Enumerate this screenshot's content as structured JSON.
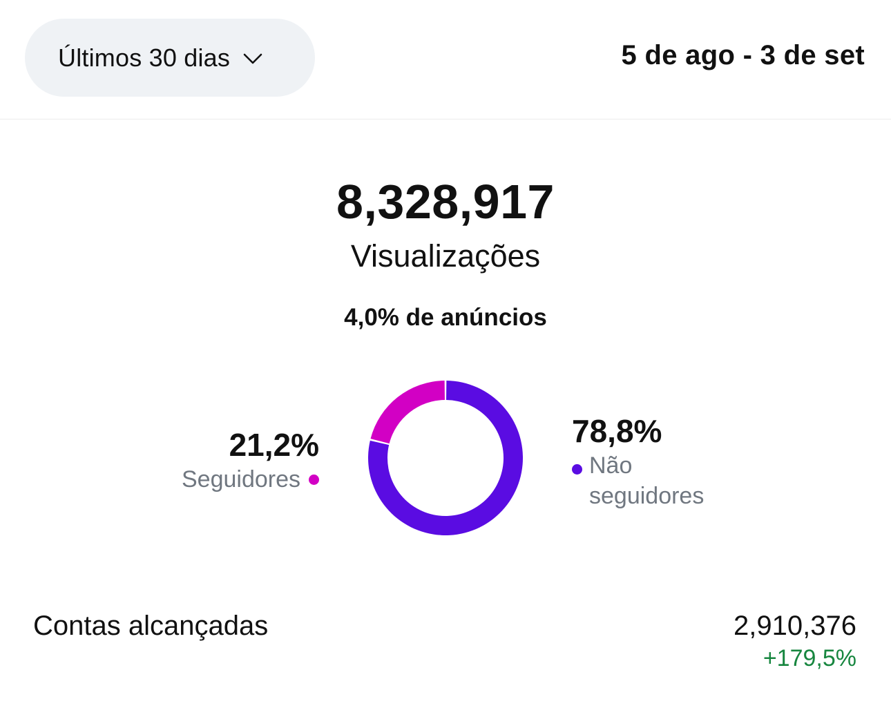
{
  "header": {
    "range_label": "Últimos 30 dias",
    "date_range": "5 de ago - 3 de set"
  },
  "summary": {
    "total_value": "8,328,917",
    "total_label": "Visualizações",
    "ads_note": "4,0% de anúncios"
  },
  "breakdown": {
    "followers": {
      "percent_label": "21,2%",
      "name": "Seguidores",
      "color": "#d200c4"
    },
    "non_followers": {
      "percent_label": "78,8%",
      "name": "Não seguidores",
      "color": "#5a0ce2"
    }
  },
  "chart_data": {
    "type": "pie",
    "donut": true,
    "categories": [
      "Seguidores",
      "Não seguidores"
    ],
    "values": [
      21.2,
      78.8
    ],
    "colors": [
      "#d200c4",
      "#5a0ce2"
    ]
  },
  "metrics": {
    "accounts_reached": {
      "label": "Contas alcançadas",
      "value": "2,910,376",
      "change": "+179,5%",
      "change_color": "#17863f"
    }
  }
}
